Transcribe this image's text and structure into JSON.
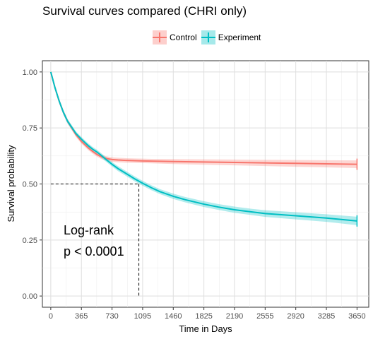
{
  "chart_data": {
    "type": "line",
    "title": "Survival curves compared (CHRI only)",
    "xlabel": "Time in Days",
    "ylabel": "Survival probability",
    "xlim": [
      -100,
      3790
    ],
    "ylim": [
      -0.05,
      1.05
    ],
    "x_ticks": [
      0,
      365,
      730,
      1095,
      1460,
      1825,
      2190,
      2555,
      2920,
      3285,
      3650
    ],
    "x_tick_labels": [
      "0",
      "365",
      "730",
      "1095",
      "1460",
      "1825",
      "2190",
      "2555",
      "2920",
      "3285",
      "3650"
    ],
    "y_ticks": [
      0.0,
      0.25,
      0.5,
      0.75,
      1.0
    ],
    "y_tick_labels": [
      "0.00",
      "0.25",
      "0.50",
      "0.75",
      "1.00"
    ],
    "grid": true,
    "legend_position": "top",
    "series": [
      {
        "name": "Control",
        "color": "#F8766D",
        "band_color": "#F8766D",
        "x": [
          0,
          50,
          100,
          150,
          200,
          300,
          365,
          450,
          500,
          550,
          600,
          650,
          700,
          730,
          800,
          900,
          1000,
          1095,
          1200,
          1460,
          1825,
          2190,
          2555,
          2920,
          3285,
          3650
        ],
        "y": [
          1.0,
          0.93,
          0.87,
          0.82,
          0.78,
          0.72,
          0.69,
          0.66,
          0.645,
          0.632,
          0.622,
          0.615,
          0.611,
          0.609,
          0.607,
          0.605,
          0.604,
          0.603,
          0.602,
          0.6,
          0.598,
          0.596,
          0.594,
          0.592,
          0.59,
          0.588
        ],
        "lower": [
          1.0,
          0.92,
          0.86,
          0.81,
          0.77,
          0.71,
          0.68,
          0.65,
          0.635,
          0.622,
          0.612,
          0.605,
          0.601,
          0.599,
          0.597,
          0.595,
          0.594,
          0.593,
          0.592,
          0.589,
          0.586,
          0.583,
          0.58,
          0.577,
          0.574,
          0.571
        ],
        "upper": [
          1.0,
          0.94,
          0.88,
          0.83,
          0.79,
          0.73,
          0.7,
          0.67,
          0.655,
          0.642,
          0.632,
          0.625,
          0.621,
          0.619,
          0.617,
          0.615,
          0.614,
          0.613,
          0.612,
          0.611,
          0.61,
          0.609,
          0.608,
          0.607,
          0.606,
          0.605
        ]
      },
      {
        "name": "Experiment",
        "color": "#00BFC4",
        "band_color": "#00BFC4",
        "x": [
          0,
          50,
          100,
          150,
          200,
          300,
          365,
          450,
          500,
          550,
          600,
          650,
          700,
          730,
          800,
          900,
          1000,
          1095,
          1200,
          1300,
          1460,
          1600,
          1825,
          2000,
          2190,
          2400,
          2555,
          2920,
          3285,
          3650
        ],
        "y": [
          1.0,
          0.93,
          0.87,
          0.82,
          0.78,
          0.725,
          0.7,
          0.67,
          0.655,
          0.643,
          0.628,
          0.612,
          0.597,
          0.588,
          0.569,
          0.546,
          0.523,
          0.503,
          0.483,
          0.466,
          0.445,
          0.43,
          0.41,
          0.397,
          0.385,
          0.375,
          0.368,
          0.358,
          0.348,
          0.335
        ],
        "lower": [
          1.0,
          0.92,
          0.86,
          0.81,
          0.77,
          0.715,
          0.69,
          0.66,
          0.645,
          0.633,
          0.618,
          0.602,
          0.587,
          0.578,
          0.558,
          0.535,
          0.512,
          0.492,
          0.472,
          0.455,
          0.433,
          0.418,
          0.397,
          0.384,
          0.371,
          0.361,
          0.353,
          0.342,
          0.331,
          0.316
        ],
        "upper": [
          1.0,
          0.94,
          0.88,
          0.83,
          0.79,
          0.735,
          0.71,
          0.68,
          0.665,
          0.653,
          0.638,
          0.622,
          0.607,
          0.598,
          0.58,
          0.557,
          0.534,
          0.514,
          0.494,
          0.477,
          0.457,
          0.442,
          0.423,
          0.41,
          0.399,
          0.389,
          0.383,
          0.374,
          0.365,
          0.354
        ]
      }
    ],
    "median_line": {
      "y": 0.5,
      "x": 1050
    },
    "annotations": [
      "Log-rank",
      "p < 0.0001"
    ]
  }
}
